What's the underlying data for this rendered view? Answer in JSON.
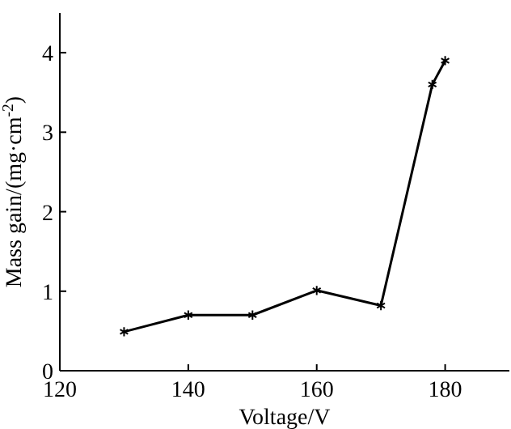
{
  "chart_data": {
    "type": "line",
    "xlabel": "Voltage/V",
    "ylabel": "Mass gain/(mg·cm$^{-2}$)",
    "x": [
      130,
      140,
      150,
      160,
      170,
      178,
      180
    ],
    "series": [
      {
        "color": "#000000",
        "values": [
          0.49,
          0.7,
          0.7,
          1.01,
          0.82,
          3.6,
          3.9
        ]
      }
    ],
    "xlim": [
      120,
      190
    ],
    "xticks": [
      120,
      140,
      160,
      180
    ],
    "ylim": [
      0,
      4.5
    ],
    "yticks": [
      0,
      1,
      2,
      3,
      4
    ],
    "marker": "cross",
    "line_style": "solid"
  }
}
